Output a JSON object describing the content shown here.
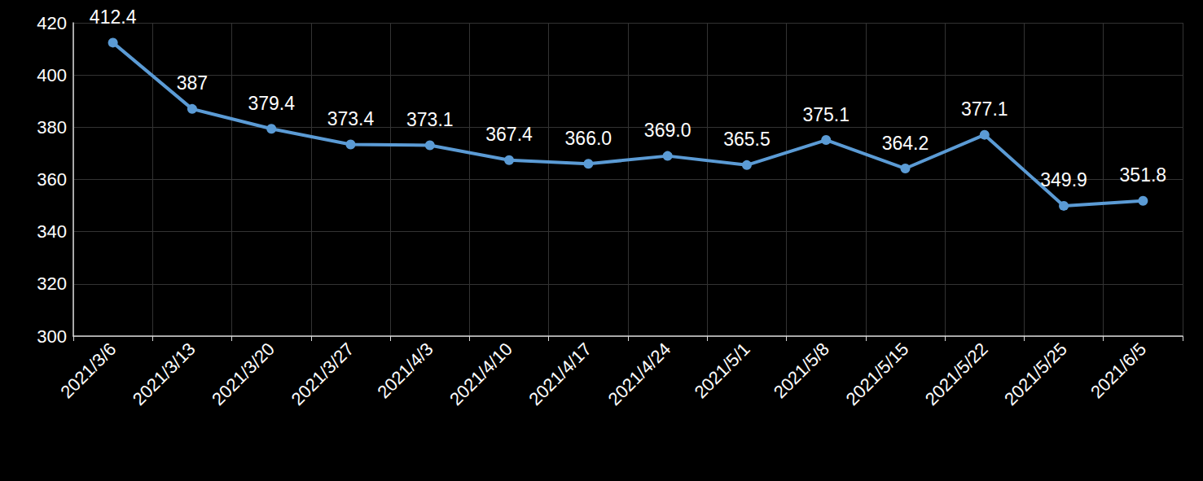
{
  "chart_data": {
    "type": "line",
    "categories": [
      "2021/3/6",
      "2021/3/13",
      "2021/3/20",
      "2021/3/27",
      "2021/4/3",
      "2021/4/10",
      "2021/4/17",
      "2021/4/24",
      "2021/5/1",
      "2021/5/8",
      "2021/5/15",
      "2021/5/22",
      "2021/5/25",
      "2021/6/5"
    ],
    "values": [
      412.4,
      387,
      379.4,
      373.4,
      373.1,
      367.4,
      366.0,
      369.0,
      365.5,
      375.1,
      364.2,
      377.1,
      349.9,
      351.8
    ],
    "value_labels": [
      "412.4",
      "387",
      "379.4",
      "373.4",
      "373.1",
      "367.4",
      "366.0",
      "369.0",
      "365.5",
      "375.1",
      "364.2",
      "377.1",
      "349.9",
      "351.8"
    ],
    "color": "#5b9bd5",
    "marker": "circle",
    "ylim": [
      300,
      420
    ],
    "yticks": [
      300,
      320,
      340,
      360,
      380,
      400,
      420
    ],
    "grid": true,
    "data_labels": true
  }
}
